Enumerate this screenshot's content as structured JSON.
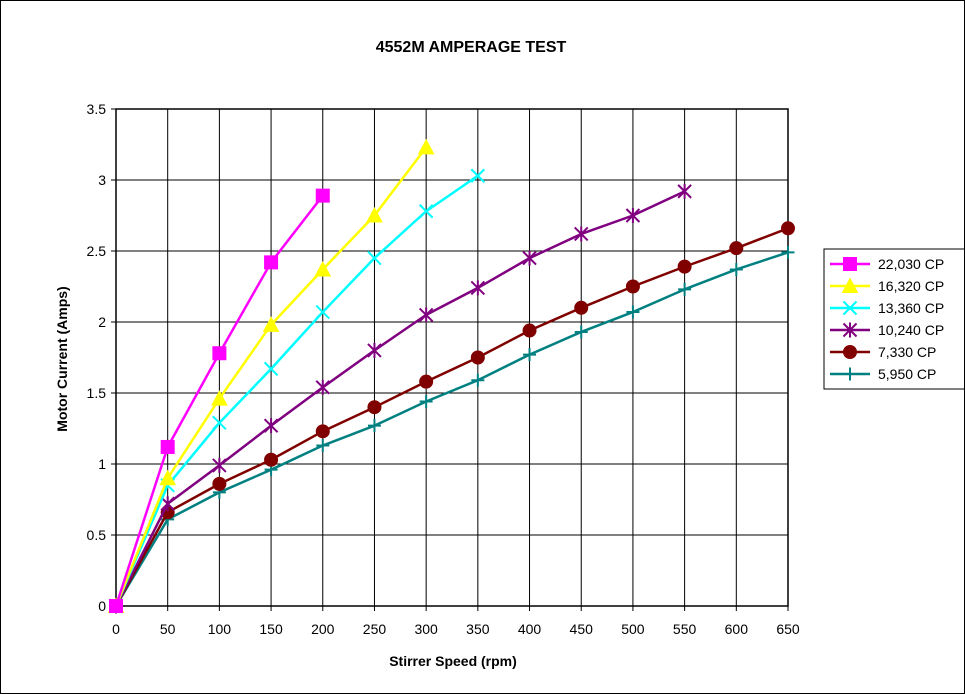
{
  "chart_data": {
    "type": "line",
    "title": "4552M AMPERAGE TEST",
    "xlabel": "Stirrer Speed (rpm)",
    "ylabel": "Motor Current (Amps)",
    "xlim": [
      0,
      650
    ],
    "ylim": [
      0,
      3.5
    ],
    "x_ticks": [
      "0",
      "50",
      "100",
      "150",
      "200",
      "250",
      "300",
      "350",
      "400",
      "450",
      "500",
      "550",
      "600",
      "650"
    ],
    "y_ticks": [
      "0",
      "0.5",
      "1",
      "1.5",
      "2",
      "2.5",
      "3",
      "3.5"
    ],
    "grid": true,
    "legend_position": "right",
    "series": [
      {
        "name": "22,030 CP",
        "color": "#ff00ff",
        "marker": "square",
        "x": [
          0,
          50,
          100,
          150,
          200
        ],
        "y": [
          0,
          1.12,
          1.78,
          2.42,
          2.89
        ]
      },
      {
        "name": "16,320 CP",
        "color": "#ffff00",
        "marker": "triangle",
        "x": [
          0,
          50,
          100,
          150,
          200,
          250,
          300
        ],
        "y": [
          0,
          0.9,
          1.46,
          1.98,
          2.37,
          2.75,
          3.23
        ]
      },
      {
        "name": "13,360 CP",
        "color": "#00ffff",
        "marker": "x",
        "x": [
          0,
          50,
          100,
          150,
          200,
          250,
          300,
          350
        ],
        "y": [
          0,
          0.85,
          1.29,
          1.67,
          2.07,
          2.45,
          2.78,
          3.03
        ]
      },
      {
        "name": "10,240 CP",
        "color": "#800080",
        "marker": "star",
        "x": [
          0,
          50,
          100,
          150,
          200,
          250,
          300,
          350,
          400,
          450,
          500,
          550
        ],
        "y": [
          0,
          0.72,
          0.99,
          1.27,
          1.54,
          1.8,
          2.05,
          2.24,
          2.45,
          2.62,
          2.75,
          2.92
        ]
      },
      {
        "name": "7,330 CP",
        "color": "#800000",
        "marker": "circle",
        "x": [
          0,
          50,
          100,
          150,
          200,
          250,
          300,
          350,
          400,
          450,
          500,
          550,
          600,
          650
        ],
        "y": [
          0,
          0.66,
          0.86,
          1.03,
          1.23,
          1.4,
          1.58,
          1.75,
          1.94,
          2.1,
          2.25,
          2.39,
          2.52,
          2.66
        ]
      },
      {
        "name": "5,950 CP",
        "color": "#008080",
        "marker": "plus",
        "x": [
          0,
          50,
          100,
          150,
          200,
          250,
          300,
          350,
          400,
          450,
          500,
          550,
          600,
          650
        ],
        "y": [
          0,
          0.61,
          0.8,
          0.96,
          1.13,
          1.27,
          1.44,
          1.59,
          1.77,
          1.93,
          2.07,
          2.23,
          2.37,
          2.49
        ]
      }
    ]
  }
}
